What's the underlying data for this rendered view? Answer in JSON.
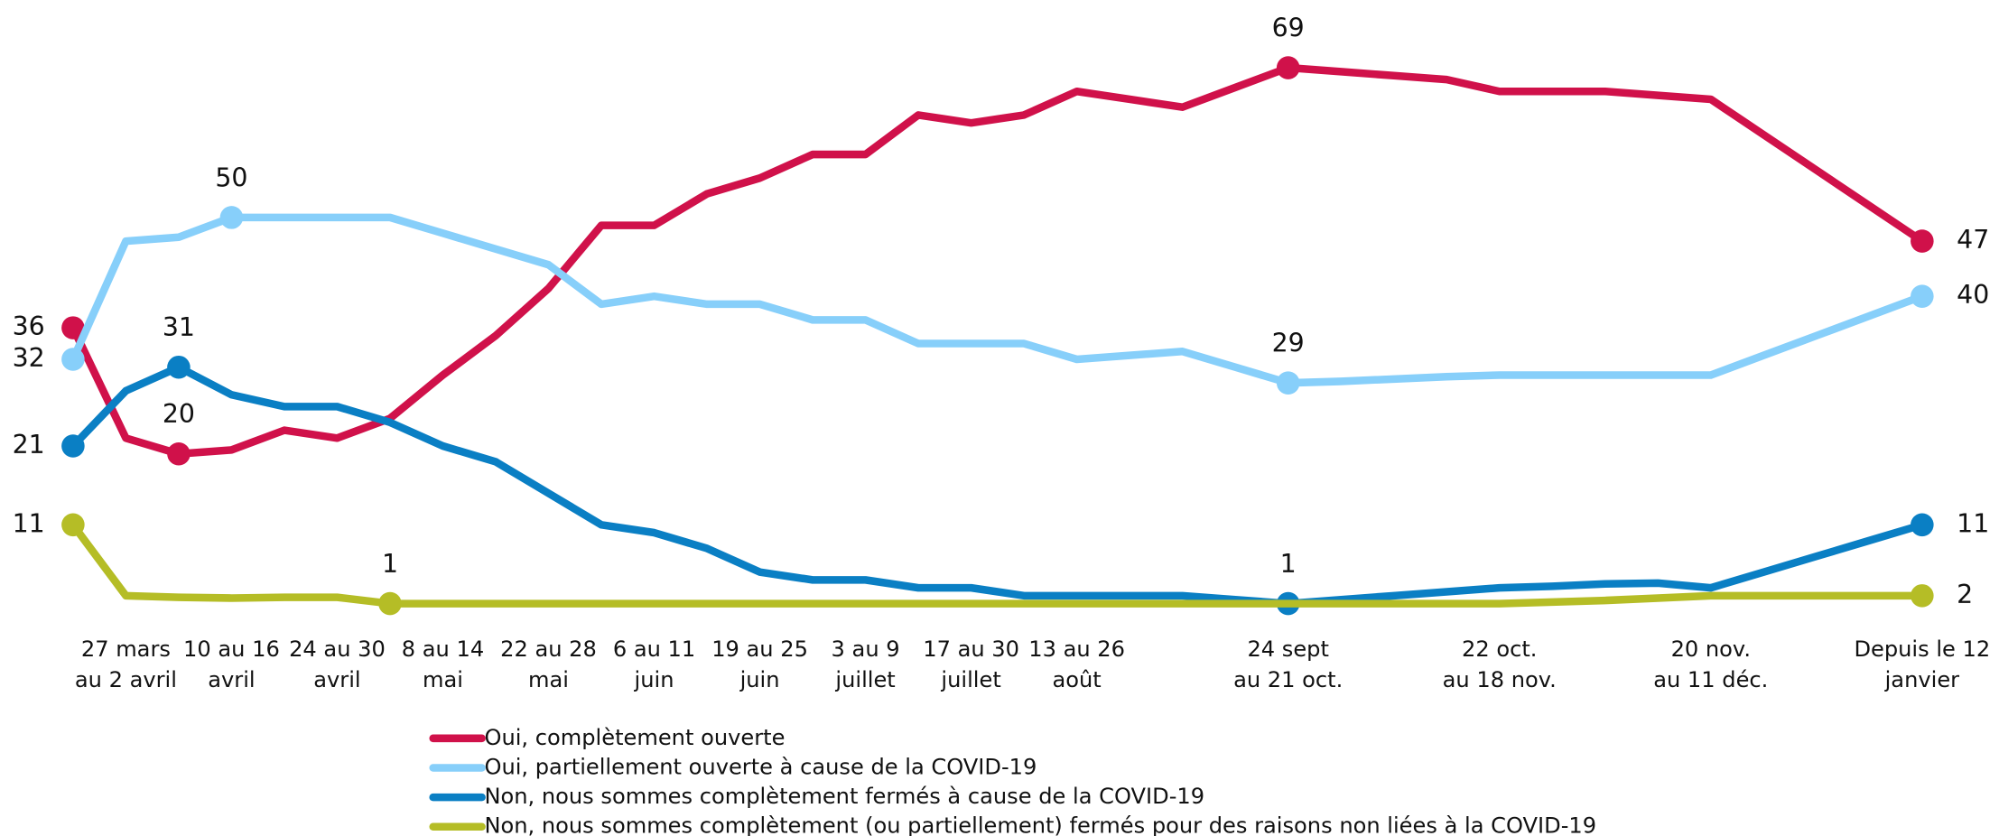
{
  "chart_data": {
    "type": "line",
    "categories": [
      null,
      [
        "27 mars",
        "au 2 avril"
      ],
      null,
      [
        "10 au 16",
        "avril"
      ],
      null,
      [
        "24 au 30",
        "avril"
      ],
      null,
      [
        "8 au 14",
        "mai"
      ],
      null,
      [
        "22 au 28",
        "mai"
      ],
      null,
      [
        "6 au 11",
        "juin"
      ],
      null,
      [
        "19 au 25",
        "juin"
      ],
      null,
      [
        "3 au 9",
        "juillet"
      ],
      null,
      [
        "17 au 30",
        "juillet"
      ],
      null,
      [
        "13 au 26",
        "août"
      ],
      null,
      null,
      null,
      [
        "24 sept",
        "au 21 oct."
      ],
      null,
      null,
      null,
      [
        "22 oct.",
        "au 18 nov."
      ],
      null,
      null,
      null,
      [
        "20 nov.",
        "au 11 déc."
      ],
      null,
      null,
      null,
      [
        "Depuis le 12",
        "janvier"
      ]
    ],
    "ylim": [
      0,
      75
    ],
    "series": [
      {
        "name": "Oui, complètement ouverte",
        "color": "#d0114a",
        "labeled_points": [
          0,
          2,
          23,
          35
        ],
        "values": [
          36,
          22,
          20,
          20.5,
          23,
          22,
          24.5,
          30,
          35,
          41,
          49,
          49,
          53,
          55,
          58,
          58,
          63,
          62,
          63,
          66,
          65,
          64,
          66.5,
          69,
          68.5,
          68,
          67.5,
          66,
          66,
          66,
          65.5,
          65,
          60.5,
          56,
          51.5,
          47
        ]
      },
      {
        "name": "Oui, partiellement ouverte à cause de la COVID-19",
        "color": "#87cffa",
        "labeled_points": [
          0,
          3,
          23,
          35
        ],
        "values": [
          32,
          47,
          47.5,
          50,
          50,
          50,
          50,
          48,
          46,
          44,
          39,
          40,
          39,
          39,
          37,
          37,
          34,
          34,
          34,
          32,
          32.5,
          33,
          31,
          29,
          29.2,
          29.5,
          29.8,
          30,
          30,
          30,
          30,
          30,
          32.5,
          35,
          37.5,
          40
        ]
      },
      {
        "name": "Non, nous sommes complètement fermés à cause de la COVID-19",
        "color": "#0a7fc4",
        "labeled_points": [
          0,
          2,
          23,
          35
        ],
        "values": [
          21,
          28,
          31,
          27.5,
          26,
          26,
          24,
          21,
          19,
          15,
          11,
          10,
          8,
          5,
          4,
          4,
          3,
          3,
          2,
          2,
          2,
          2,
          1.5,
          1,
          1.5,
          2,
          2.5,
          3,
          3.2,
          3.5,
          3.6,
          3,
          5,
          7,
          9,
          11
        ]
      },
      {
        "name": "Non, nous sommes complètement (ou partiellement) fermés pour des raisons non liées à la COVID-19",
        "color": "#b5bd26",
        "labeled_points": [
          0,
          6,
          35
        ],
        "values": [
          11,
          2,
          1.8,
          1.7,
          1.8,
          1.8,
          1,
          1,
          1,
          1,
          1,
          1,
          1,
          1,
          1,
          1,
          1,
          1,
          1,
          1,
          1,
          1,
          1,
          1,
          1,
          1,
          1,
          1,
          1.2,
          1.4,
          1.7,
          2,
          2,
          2,
          2,
          2
        ]
      }
    ]
  }
}
